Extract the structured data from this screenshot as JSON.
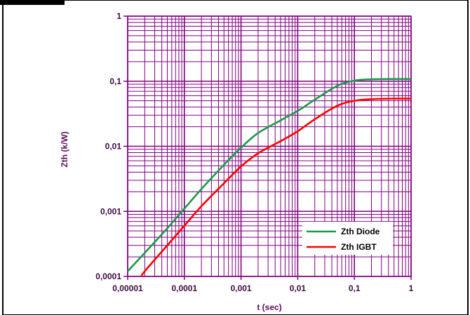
{
  "header": {
    "title": ""
  },
  "chart_data": {
    "type": "line",
    "title": "",
    "xlabel": "t (sec)",
    "ylabel": "Zth (k/W)",
    "xscale": "log",
    "yscale": "log",
    "xlim": [
      1e-05,
      1
    ],
    "ylim": [
      0.0001,
      1
    ],
    "x_tick_labels": [
      "0,00001",
      "0,0001",
      "0,001",
      "0,01",
      "0,1",
      "1"
    ],
    "y_tick_labels": [
      "0,0001",
      "0,001",
      "0,01",
      "0,1",
      "1"
    ],
    "grid": true,
    "grid_color": "#800080",
    "legend_position": "bottom-right",
    "series": [
      {
        "name": "Zth Diode",
        "color": "#1a9a4a",
        "x": [
          1e-05,
          2e-05,
          5e-05,
          0.0001,
          0.0002,
          0.0005,
          0.001,
          0.002,
          0.005,
          0.01,
          0.02,
          0.05,
          0.1,
          0.2,
          0.5,
          1
        ],
        "y": [
          0.00012,
          0.00023,
          0.00055,
          0.0011,
          0.0022,
          0.0052,
          0.0095,
          0.016,
          0.025,
          0.035,
          0.052,
          0.085,
          0.102,
          0.107,
          0.108,
          0.108
        ]
      },
      {
        "name": "Zth IGBT",
        "color": "#ff0000",
        "x": [
          1.75e-05,
          2e-05,
          5e-05,
          0.0001,
          0.0002,
          0.0005,
          0.001,
          0.002,
          0.005,
          0.01,
          0.02,
          0.05,
          0.1,
          0.2,
          0.5,
          1
        ],
        "y": [
          0.0001,
          0.00012,
          0.0003,
          0.0006,
          0.0012,
          0.0027,
          0.0049,
          0.0078,
          0.012,
          0.017,
          0.026,
          0.042,
          0.05,
          0.053,
          0.054,
          0.054
        ]
      }
    ]
  }
}
